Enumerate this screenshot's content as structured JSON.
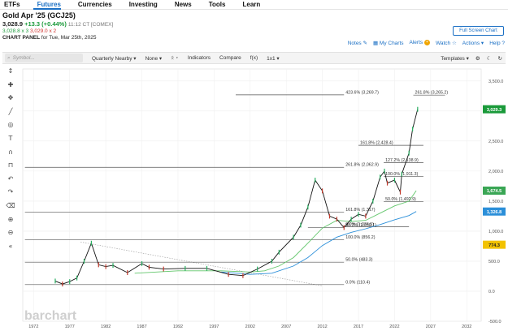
{
  "nav": {
    "tabs": [
      "ETFs",
      "Futures",
      "Currencies",
      "Investing",
      "News",
      "Tools",
      "Learn"
    ],
    "active": 1
  },
  "quote": {
    "title": "Gold Apr '25 (GCJ25)",
    "price": "3,028.9",
    "change": "+13.3 (+0.44%)",
    "time": "11:12 CT [COMEX]",
    "bid": "3,028.8 x 3",
    "ask": "3,029.0 x 2",
    "panel_label": "CHART PANEL",
    "panel_date": "for Tue, Mar 25th, 2025"
  },
  "header_actions": {
    "fullscreen": "Full Screen Chart",
    "notes": "Notes",
    "mycharts": "My Charts",
    "alerts": "Alerts",
    "alert_count": "+",
    "watch": "Watch",
    "actions": "Actions",
    "help": "Help"
  },
  "toolbar": {
    "symbol_placeholder": "Symbol...",
    "period": "Quarterly Nearby",
    "overlay": "None",
    "indicators": "Indicators",
    "compare": "Compare",
    "fx": "f(x)",
    "ratio": "1x1",
    "templates": "Templates"
  },
  "tools": [
    "cursor-icon",
    "crosshair-icon",
    "move-icon",
    "line-tool-icon",
    "target-icon",
    "text-tool-icon",
    "magnet-icon",
    "lock-icon",
    "undo-icon",
    "redo-icon",
    "delete-icon",
    "zoom-in-icon",
    "zoom-out-icon",
    "collapse-icon"
  ],
  "watermark": "barchart",
  "chart_data": {
    "type": "line",
    "title": "",
    "ylim": [
      -500,
      3700
    ],
    "y_ticks": [
      "3,500.0",
      "3,000.0",
      "2,500.0",
      "2,000.0",
      "1,500.0",
      "1,000.0",
      "500.0",
      "0.0",
      "-500.0"
    ],
    "x_ticks": [
      "1972",
      "1977",
      "1982",
      "1987",
      "1992",
      "1997",
      "2002",
      "2007",
      "2012",
      "2017",
      "2022",
      "2027",
      "2032"
    ],
    "series": [
      {
        "name": "Gold",
        "x": [
          1975,
          1976,
          1977,
          1978,
          1979,
          1980,
          1981,
          1982,
          1983,
          1985,
          1987,
          1988,
          1990,
          1993,
          1996,
          1999,
          2001,
          2003,
          2005,
          2006,
          2008,
          2009,
          2010,
          2011,
          2012,
          2013,
          2014,
          2015,
          2016,
          2017,
          2018,
          2019,
          2020,
          2020.6,
          2021,
          2022,
          2022.8,
          2023,
          2024,
          2024.5,
          2025.2
        ],
        "y": [
          170,
          120,
          160,
          220,
          500,
          800,
          440,
          410,
          430,
          310,
          460,
          400,
          370,
          380,
          380,
          280,
          260,
          370,
          500,
          650,
          900,
          1100,
          1400,
          1850,
          1670,
          1250,
          1200,
          1060,
          1200,
          1280,
          1250,
          1500,
          1900,
          2000,
          1800,
          1850,
          1650,
          1950,
          2300,
          2700,
          3029
        ]
      }
    ],
    "overlay_levels": [
      {
        "label": "423.6% (3,269.7)",
        "value": 3269.7
      },
      {
        "label": "261.8% (3,265.2)",
        "value": 3265.2
      },
      {
        "label": "161.8% (2,428.4)",
        "value": 2428.4
      },
      {
        "label": "127.2% (2,138.9)",
        "value": 2138.9
      },
      {
        "label": "261.8% (2,062.9)",
        "value": 2062.9
      },
      {
        "label": "100.0% (1,911.3)",
        "value": 1911.3
      },
      {
        "label": "50.0% (1,492.9)",
        "value": 1492.9
      },
      {
        "label": "161.8% (1,317)",
        "value": 1317
      },
      {
        "label": "0.0% (1,074.5)",
        "value": 1074.5
      },
      {
        "label": "38.2% (1,059.1)",
        "value": 1059.1
      },
      {
        "label": "100.0% (856.2)",
        "value": 856.2
      },
      {
        "label": "50.0% (483.3)",
        "value": 483.3
      },
      {
        "label": "0.0% (110.4)",
        "value": 110.4
      }
    ],
    "badges": [
      {
        "value": "3,029.3",
        "color": "#1a9a3a"
      },
      {
        "value": "1,674.5",
        "color": "#3aa655"
      },
      {
        "value": "1,326.8",
        "color": "#2b8fd9"
      },
      {
        "value": "774.3",
        "color": "#f2c200"
      }
    ],
    "grid": true
  }
}
